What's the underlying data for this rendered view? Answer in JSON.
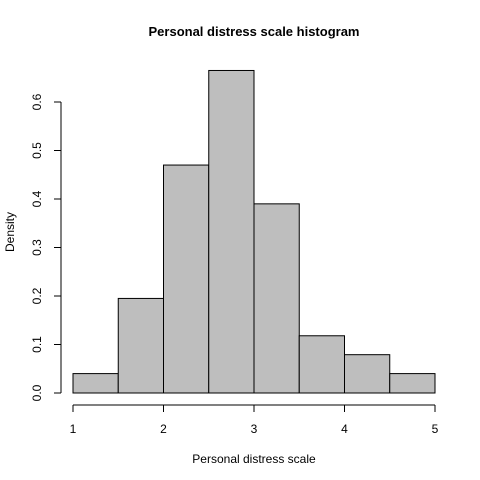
{
  "chart_data": {
    "type": "bar",
    "title": "Personal distress scale histogram",
    "xlabel": "Personal distress scale",
    "ylabel": "Density",
    "bins": [
      {
        "start": 1.0,
        "end": 1.5,
        "density": 0.04
      },
      {
        "start": 1.5,
        "end": 2.0,
        "density": 0.195
      },
      {
        "start": 2.0,
        "end": 2.5,
        "density": 0.47
      },
      {
        "start": 2.5,
        "end": 3.0,
        "density": 0.665
      },
      {
        "start": 3.0,
        "end": 3.5,
        "density": 0.39
      },
      {
        "start": 3.5,
        "end": 4.0,
        "density": 0.118
      },
      {
        "start": 4.0,
        "end": 4.5,
        "density": 0.079
      },
      {
        "start": 4.5,
        "end": 5.0,
        "density": 0.04
      }
    ],
    "xticks": [
      {
        "value": 1,
        "label": "1"
      },
      {
        "value": 2,
        "label": "2"
      },
      {
        "value": 3,
        "label": "3"
      },
      {
        "value": 4,
        "label": "4"
      },
      {
        "value": 5,
        "label": "5"
      }
    ],
    "yticks": [
      {
        "value": 0.0,
        "label": "0.0"
      },
      {
        "value": 0.1,
        "label": "0.1"
      },
      {
        "value": 0.2,
        "label": "0.2"
      },
      {
        "value": 0.3,
        "label": "0.3"
      },
      {
        "value": 0.4,
        "label": "0.4"
      },
      {
        "value": 0.5,
        "label": "0.5"
      },
      {
        "value": 0.6,
        "label": "0.6"
      }
    ],
    "xlim": [
      1,
      5
    ],
    "ylim": [
      0,
      0.6
    ],
    "grid": false,
    "legend": "none",
    "bar_color": "#bebebe",
    "edge_color": "#000000"
  }
}
